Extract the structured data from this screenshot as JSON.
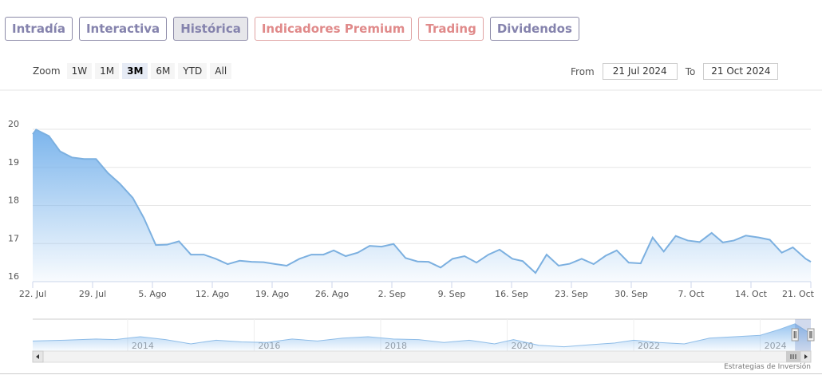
{
  "tabs": [
    {
      "label": "Intradía",
      "style": "normal"
    },
    {
      "label": "Interactiva",
      "style": "normal"
    },
    {
      "label": "Histórica",
      "style": "active"
    },
    {
      "label": "Indicadores Premium",
      "style": "red"
    },
    {
      "label": "Trading",
      "style": "red"
    },
    {
      "label": "Dividendos",
      "style": "normal"
    }
  ],
  "zoom": {
    "label": "Zoom",
    "buttons": [
      "1W",
      "1M",
      "3M",
      "6M",
      "YTD",
      "All"
    ],
    "selected": "3M"
  },
  "range": {
    "from_label": "From",
    "from": "21 Jul 2024",
    "to_label": "To",
    "to": "21 Oct 2024"
  },
  "credit": "Estrategias de Inversión",
  "colors": {
    "line": "#7cb0e0",
    "fill_top": "#7cb5ec",
    "grid": "#e6e6e6"
  },
  "chart_data": {
    "type": "area",
    "x_unit": "days since 22 Jul 2024",
    "xlim": [
      0,
      91
    ],
    "ylim": [
      16,
      20
    ],
    "yticks": [
      16,
      17,
      18,
      19,
      20
    ],
    "xticks": [
      {
        "day": 0,
        "label": "22. Jul"
      },
      {
        "day": 7,
        "label": "29. Jul"
      },
      {
        "day": 14,
        "label": "5. Ago"
      },
      {
        "day": 21,
        "label": "12. Ago"
      },
      {
        "day": 28,
        "label": "19. Ago"
      },
      {
        "day": 35,
        "label": "26. Ago"
      },
      {
        "day": 42,
        "label": "2. Sep"
      },
      {
        "day": 49,
        "label": "9. Sep"
      },
      {
        "day": 56,
        "label": "16. Sep"
      },
      {
        "day": 63,
        "label": "23. Sep"
      },
      {
        "day": 70,
        "label": "30. Sep"
      },
      {
        "day": 77,
        "label": "7. Oct"
      },
      {
        "day": 84,
        "label": "14. Oct"
      },
      {
        "day": 91,
        "label": "21. Oct"
      }
    ],
    "points": [
      [
        0,
        19.87
      ],
      [
        0.4,
        19.99
      ],
      [
        1.9,
        19.82
      ],
      [
        3.2,
        19.42
      ],
      [
        4.6,
        19.26
      ],
      [
        6.0,
        19.22
      ],
      [
        7.4,
        19.22
      ],
      [
        8.8,
        18.85
      ],
      [
        10.2,
        18.57
      ],
      [
        11.7,
        18.2
      ],
      [
        13.0,
        17.67
      ],
      [
        14.4,
        16.96
      ],
      [
        15.7,
        16.97
      ],
      [
        17.1,
        17.06
      ],
      [
        18.5,
        16.71
      ],
      [
        20.0,
        16.71
      ],
      [
        21.4,
        16.6
      ],
      [
        22.8,
        16.46
      ],
      [
        24.2,
        16.55
      ],
      [
        25.6,
        16.52
      ],
      [
        27.0,
        16.51
      ],
      [
        28.4,
        16.46
      ],
      [
        29.7,
        16.42
      ],
      [
        31.2,
        16.6
      ],
      [
        32.6,
        16.71
      ],
      [
        34.0,
        16.71
      ],
      [
        35.2,
        16.82
      ],
      [
        36.6,
        16.67
      ],
      [
        38.0,
        16.76
      ],
      [
        39.4,
        16.94
      ],
      [
        40.8,
        16.92
      ],
      [
        42.2,
        16.99
      ],
      [
        43.6,
        16.62
      ],
      [
        45.0,
        16.53
      ],
      [
        46.3,
        16.52
      ],
      [
        47.7,
        16.37
      ],
      [
        49.1,
        16.6
      ],
      [
        50.5,
        16.67
      ],
      [
        51.9,
        16.5
      ],
      [
        53.3,
        16.71
      ],
      [
        54.6,
        16.84
      ],
      [
        56.1,
        16.6
      ],
      [
        57.3,
        16.54
      ],
      [
        58.8,
        16.23
      ],
      [
        60.1,
        16.71
      ],
      [
        61.5,
        16.42
      ],
      [
        62.8,
        16.47
      ],
      [
        64.2,
        16.6
      ],
      [
        65.6,
        16.46
      ],
      [
        67.0,
        16.68
      ],
      [
        68.3,
        16.82
      ],
      [
        69.7,
        16.5
      ],
      [
        71.1,
        16.48
      ],
      [
        72.5,
        17.16
      ],
      [
        73.8,
        16.79
      ],
      [
        75.2,
        17.2
      ],
      [
        76.6,
        17.08
      ],
      [
        78.0,
        17.04
      ],
      [
        79.4,
        17.28
      ],
      [
        80.7,
        17.03
      ],
      [
        82.0,
        17.08
      ],
      [
        83.4,
        17.21
      ],
      [
        84.9,
        17.16
      ],
      [
        86.2,
        17.1
      ],
      [
        87.6,
        16.76
      ],
      [
        88.9,
        16.9
      ],
      [
        90.4,
        16.6
      ],
      [
        91,
        16.52
      ]
    ],
    "navigator": {
      "year_labels": [
        "2014",
        "2016",
        "2018",
        "2020",
        "2022",
        "2024"
      ],
      "xlim": [
        2012.5,
        2024.8
      ],
      "values": [
        [
          2012.5,
          0.35
        ],
        [
          2013,
          0.38
        ],
        [
          2013.5,
          0.42
        ],
        [
          2013.8,
          0.4
        ],
        [
          2014.2,
          0.5
        ],
        [
          2014.6,
          0.4
        ],
        [
          2015,
          0.25
        ],
        [
          2015.4,
          0.38
        ],
        [
          2015.8,
          0.32
        ],
        [
          2016.2,
          0.3
        ],
        [
          2016.6,
          0.42
        ],
        [
          2017,
          0.35
        ],
        [
          2017.4,
          0.45
        ],
        [
          2017.8,
          0.5
        ],
        [
          2018.2,
          0.42
        ],
        [
          2018.6,
          0.4
        ],
        [
          2019,
          0.3
        ],
        [
          2019.4,
          0.38
        ],
        [
          2019.8,
          0.25
        ],
        [
          2020.1,
          0.4
        ],
        [
          2020.5,
          0.2
        ],
        [
          2020.9,
          0.15
        ],
        [
          2021.3,
          0.22
        ],
        [
          2021.7,
          0.28
        ],
        [
          2022,
          0.38
        ],
        [
          2022.4,
          0.3
        ],
        [
          2022.8,
          0.25
        ],
        [
          2023.2,
          0.45
        ],
        [
          2023.6,
          0.5
        ],
        [
          2024,
          0.55
        ],
        [
          2024.3,
          0.75
        ],
        [
          2024.55,
          0.95
        ],
        [
          2024.8,
          0.6
        ]
      ],
      "selected_range": [
        2024.55,
        2024.8
      ]
    }
  }
}
